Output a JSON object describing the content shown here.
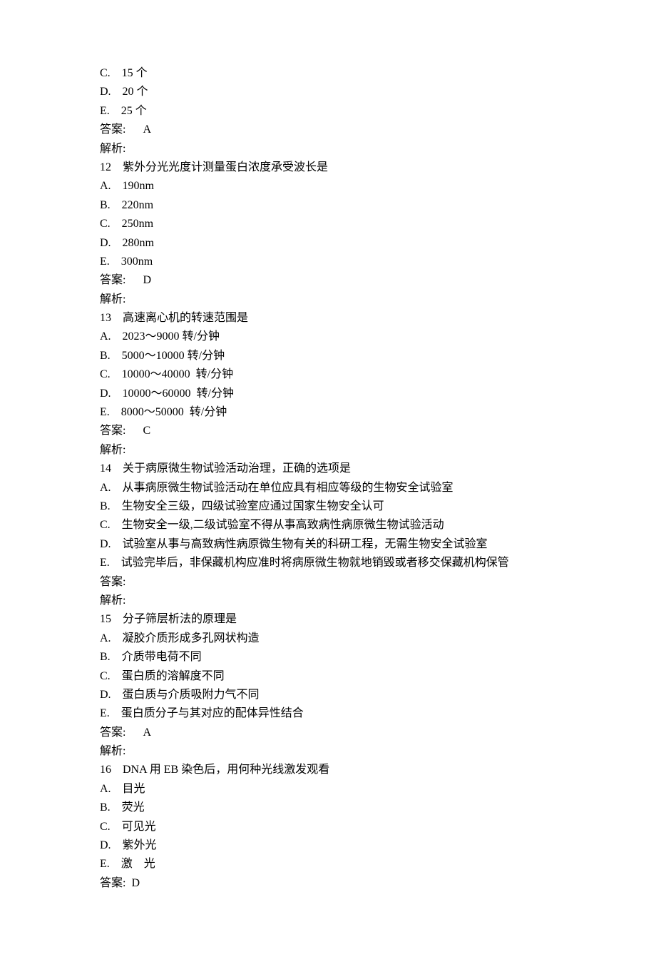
{
  "lines": [
    "C.    15 个",
    "D.    20 个",
    "E.    25 个",
    "答案:      A",
    "解析:",
    "12    紫外分光光度计测量蛋白浓度承受波长是",
    "A.    190nm",
    "B.    220nm",
    "C.    250nm",
    "D.    280nm",
    "E.    300nm",
    "答案:      D",
    "解析:",
    "13    高速离心机的转速范围是",
    "A.    2023～9000 转/分钟",
    "B.    5000～10000 转/分钟",
    "C.    10000～40000  转/分钟",
    "D.    10000～60000  转/分钟",
    "E.    8000～50000  转/分钟",
    "答案:      C",
    "解析:",
    "14    关于病原微生物试验活动治理，正确的选项是",
    "A.    从事病原微生物试验活动在单位应具有相应等级的生物安全试验室",
    "B.    生物安全三级，四级试验室应通过国家生物安全认可",
    "C.    生物安全一级,二级试验室不得从事高致病性病原微生物试验活动",
    "D.    试验室从事与高致病性病原微生物有关的科研工程，无需生物安全试验室",
    "E.    试验完毕后，非保藏机构应准时将病原微生物就地销毁或者移交保藏机构保管",
    "答案:",
    "解析:",
    "15    分子筛层析法的原理是",
    "A.    凝胶介质形成多孔网状构造",
    "B.    介质带电荷不同",
    "C.    蛋白质的溶解度不同",
    "D.    蛋白质与介质吸附力气不同",
    "E.    蛋白质分子与其对应的配体异性结合",
    "答案:      A",
    "解析:",
    "16    DNA 用 EB 染色后，用何种光线激发观看",
    "A.    目光",
    "B.    荧光",
    "C.    可见光",
    "D.    紫外光",
    "E.    激    光",
    "答案:  D"
  ]
}
